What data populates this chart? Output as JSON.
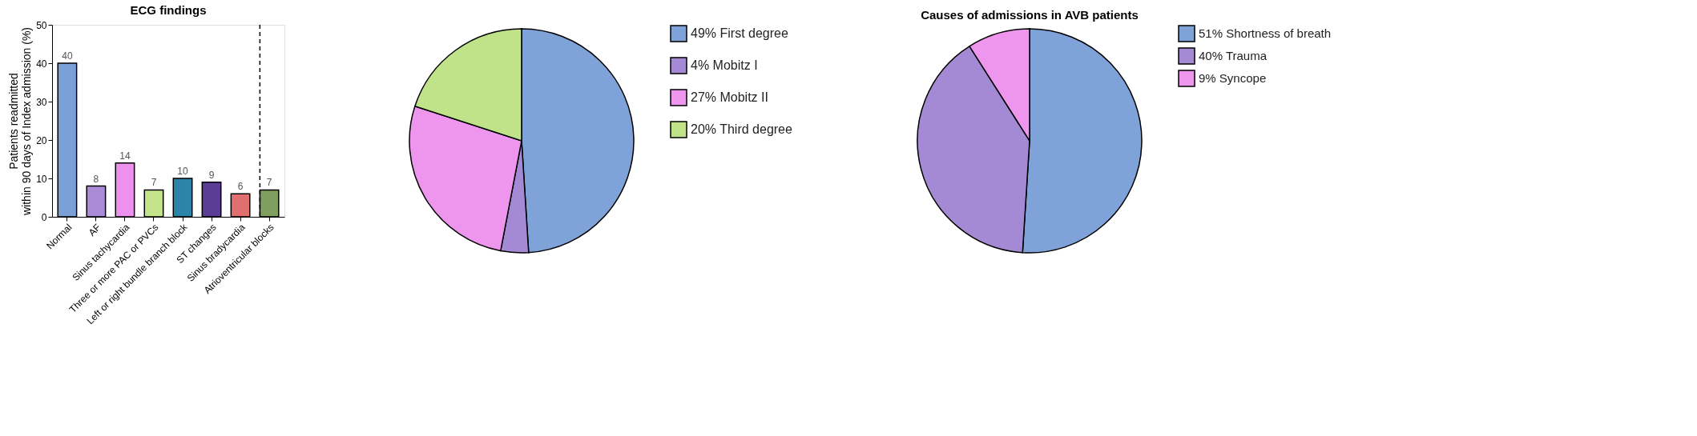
{
  "chart_data": [
    {
      "type": "bar",
      "title": "ECG findings",
      "ylabel": "Patients readmitted within 90 days of Index admission (%)",
      "categories": [
        "Normal",
        "AF",
        "Sinus tachycardia",
        "Three or more PAC or PVCs",
        "Left or right bundle branch block",
        "ST changes",
        "Sinus bradycardia",
        "Atrioventricular blocks"
      ],
      "values": [
        40,
        8,
        14,
        7,
        10,
        9,
        6,
        7
      ],
      "colors": [
        "#7aa0d8",
        "#a98bd8",
        "#ee90ee",
        "#c4e48a",
        "#2a85a8",
        "#5b3d96",
        "#e07070",
        "#7f9f5f"
      ],
      "ylim": [
        0,
        50
      ],
      "yticks": [
        0,
        10,
        20,
        30,
        40,
        50
      ],
      "grid": false,
      "legend": false,
      "data_labels": true,
      "ref_lines": [
        {
          "axis": "x",
          "value": "Atrioventricular blocks",
          "line_style": "dashed"
        }
      ]
    },
    {
      "type": "pie",
      "categories": [
        "49% First degree",
        "4% Mobitz I",
        "27% Mobitz II",
        "20% Third degree"
      ],
      "values": [
        49,
        4,
        27,
        20
      ],
      "colors": [
        "#7fa3d8",
        "#a48ad4",
        "#ee95ee",
        "#c0e38a"
      ],
      "legend": "right"
    },
    {
      "type": "pie",
      "title": "Causes of admissions in AVB patients",
      "categories": [
        "51% Shortness of breath",
        "40% Trauma",
        "9% Syncope"
      ],
      "values": [
        51,
        40,
        9
      ],
      "colors": [
        "#7fa3d8",
        "#a48ad4",
        "#ee95ee"
      ],
      "legend": "top right"
    }
  ]
}
